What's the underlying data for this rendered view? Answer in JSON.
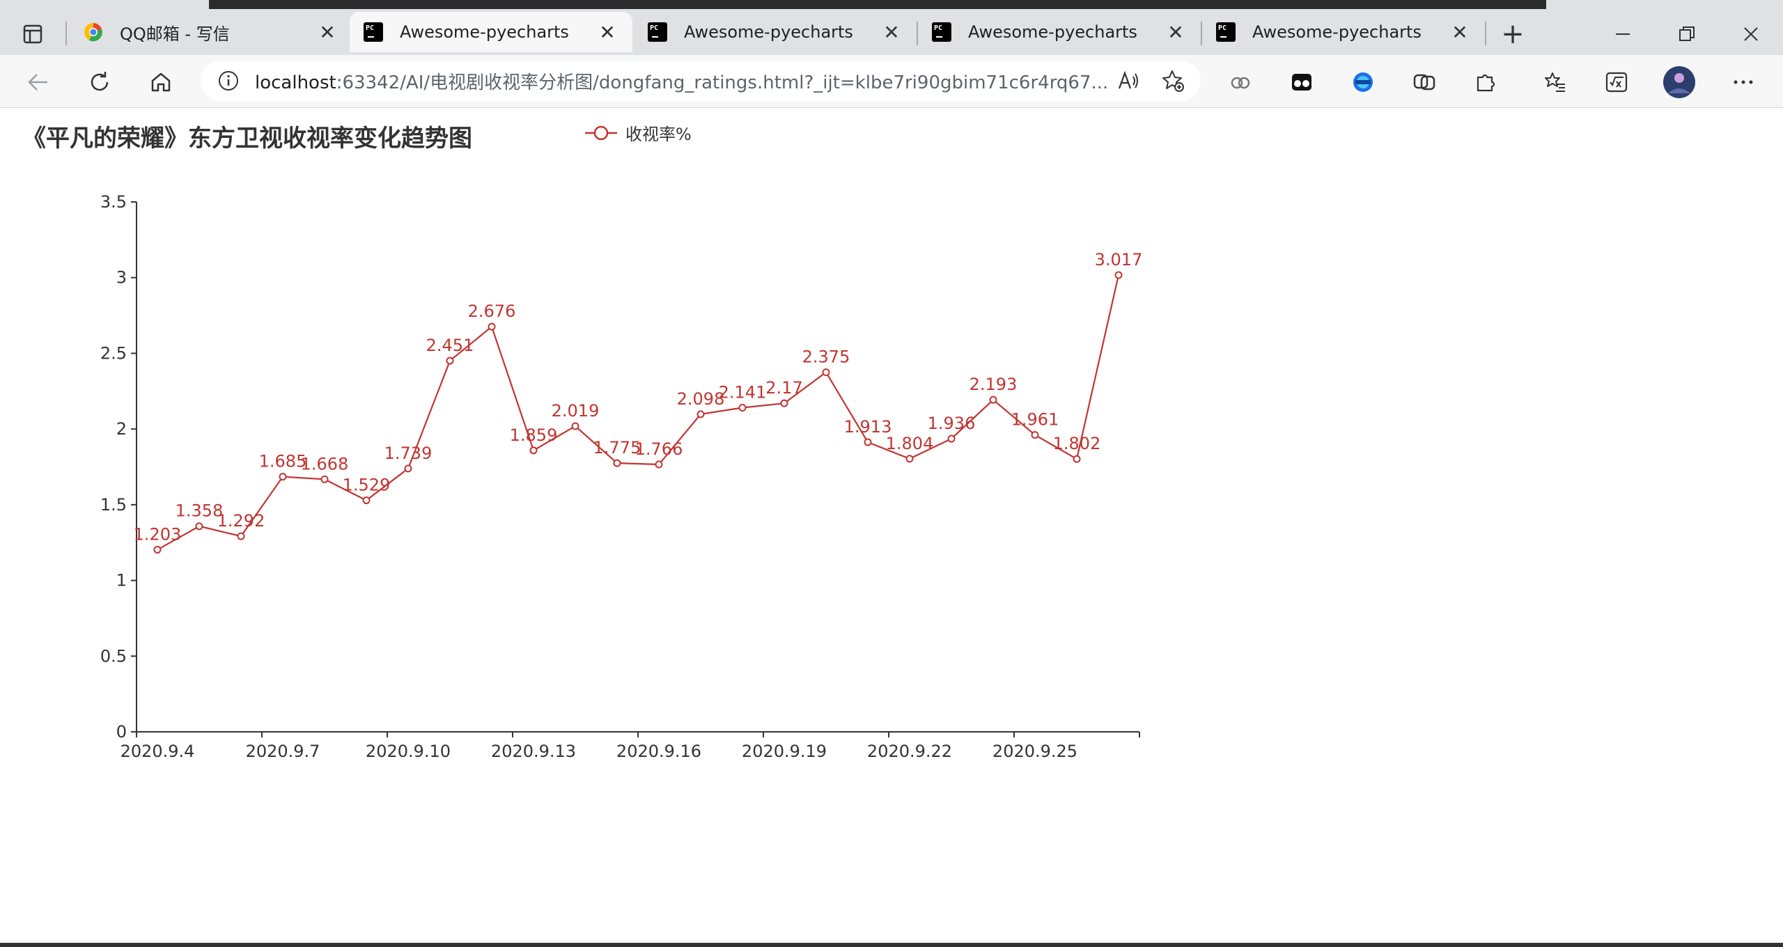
{
  "browser": {
    "tabs": [
      {
        "title": "QQ邮箱 - 写信",
        "icon": "qq-mail-icon",
        "active": false
      },
      {
        "title": "Awesome-pyecharts",
        "icon": "pycharm-icon",
        "active": true
      },
      {
        "title": "Awesome-pyecharts",
        "icon": "pycharm-icon",
        "active": false
      },
      {
        "title": "Awesome-pyecharts",
        "icon": "pycharm-icon",
        "active": false
      },
      {
        "title": "Awesome-pyecharts",
        "icon": "pycharm-icon",
        "active": false
      }
    ],
    "address": {
      "host": "localhost",
      "rest": ":63342/AI/电视剧收视率分析图/dongfang_ratings.html?_ijt=klbe7ri90gbim71c6r4rq67..."
    }
  },
  "chart_data": {
    "type": "line",
    "title": "《平凡的荣耀》东方卫视收视率变化趋势图",
    "legend": {
      "label": "收视率%",
      "position": "top"
    },
    "series": [
      {
        "name": "收视率%",
        "color": "#c23531",
        "values": [
          1.203,
          1.358,
          1.292,
          1.685,
          1.668,
          1.529,
          1.739,
          2.451,
          2.676,
          1.859,
          2.019,
          1.775,
          1.766,
          2.098,
          2.141,
          2.17,
          2.375,
          1.913,
          1.804,
          1.936,
          2.193,
          1.961,
          1.802,
          3.017
        ]
      }
    ],
    "x_tick_labels": [
      "2020.9.4",
      "2020.9.7",
      "2020.9.10",
      "2020.9.13",
      "2020.9.16",
      "2020.9.19",
      "2020.9.22",
      "2020.9.25"
    ],
    "x_tick_every": 3,
    "y_ticks": [
      "0",
      "0.5",
      "1",
      "1.5",
      "2",
      "2.5",
      "3",
      "3.5"
    ],
    "ylim": [
      0,
      3.5
    ]
  }
}
